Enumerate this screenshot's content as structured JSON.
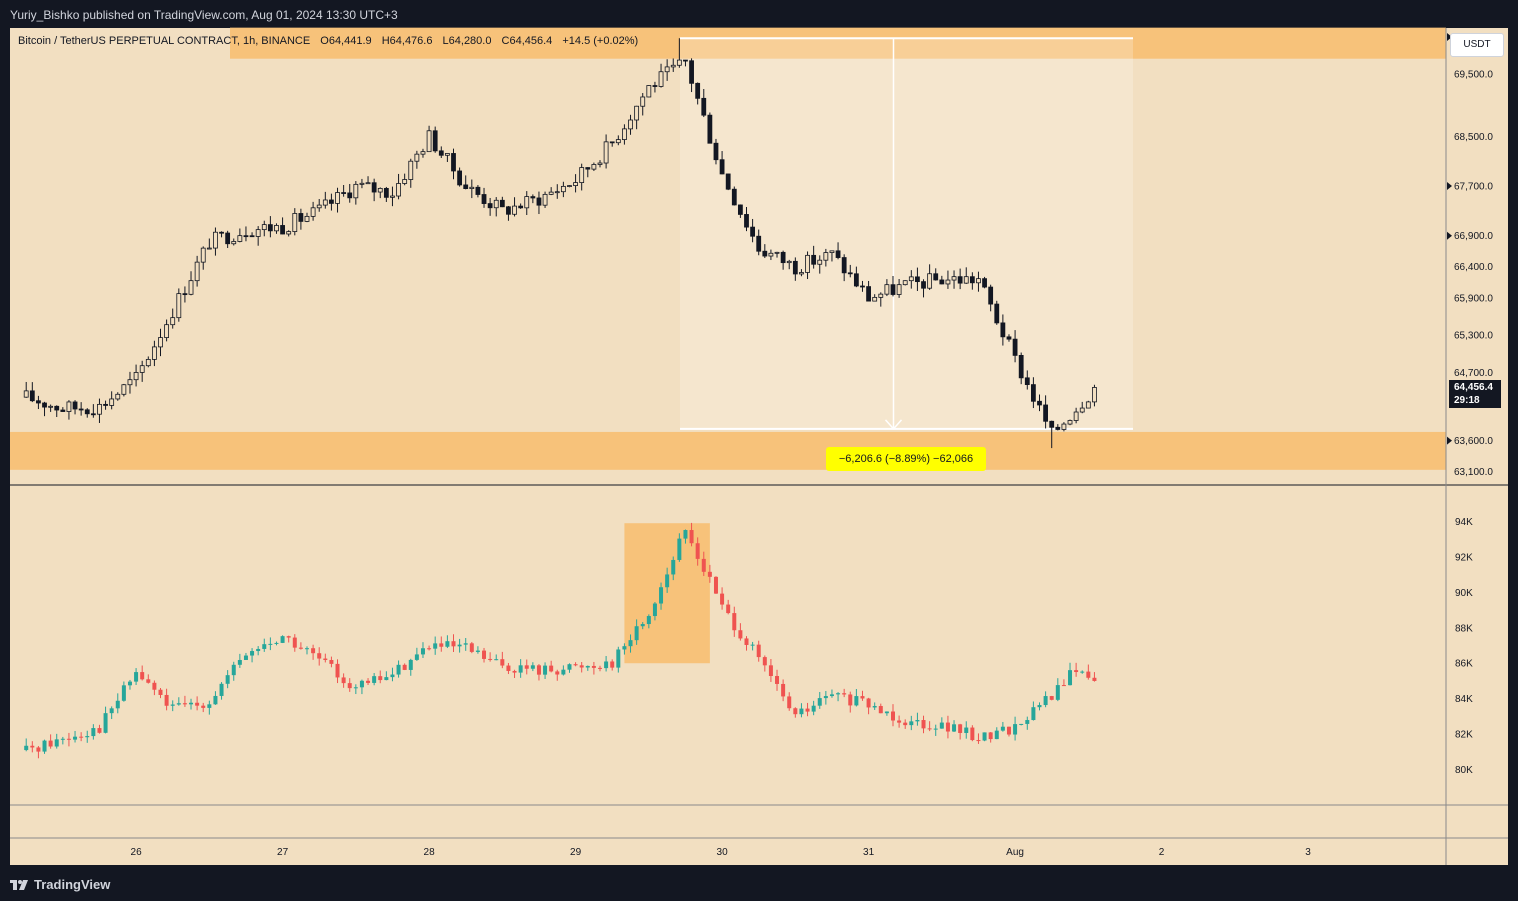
{
  "header": {
    "publisher_line": "Yuriy_Bishko published on TradingView.com, Aug 01, 2024 13:30 UTC+3"
  },
  "legend": {
    "symbol": "Bitcoin / TetherUS PERPETUAL CONTRACT, 1h, BINANCE",
    "open": "O64,441.9",
    "high": "H64,476.6",
    "low": "L64,280.0",
    "close": "C64,456.4",
    "change": "+14.5 (+0.02%)"
  },
  "currency_button": "USDT",
  "last_price": {
    "price": "64,456.4",
    "countdown": "29:18"
  },
  "measure": {
    "label": "−6,206.6 (−8.89%) −62,066"
  },
  "footer": {
    "brand": "TradingView"
  },
  "colors": {
    "background": "#f2dfc1",
    "zone": "#f7c27a",
    "bull": "#26a69a",
    "bear": "#ef5350",
    "candle_body": "#131722",
    "measure_label": "#ffff00"
  },
  "chart_data": [
    {
      "type": "candlestick",
      "title": "Bitcoin / TetherUS PERPETUAL CONTRACT, 1h, BINANCE",
      "x_ticks": [
        "26",
        "27",
        "28",
        "29",
        "30",
        "31",
        "Aug",
        "2",
        "3"
      ],
      "y_ticks": [
        "69,500.0",
        "68,500.0",
        "67,700.0",
        "66,900.0",
        "66,400.0",
        "65,900.0",
        "65,300.0",
        "64,700.0",
        "63,600.0",
        "63,100.0"
      ],
      "ylim": [
        62950,
        70180
      ],
      "grid": false,
      "series": [
        {
          "close_path": [
            [
              "Jul 25 06:00",
              64300
            ],
            [
              "Jul 25 12:00",
              64120
            ],
            [
              "Jul 25 18:00",
              64150
            ],
            [
              "Jul 26 00:00",
              64600
            ],
            [
              "Jul 26 06:00",
              65700
            ],
            [
              "Jul 26 12:00",
              66800
            ],
            [
              "Jul 26 18:00",
              67000
            ],
            [
              "Jul 27 00:00",
              67050
            ],
            [
              "Jul 27 06:00",
              67300
            ],
            [
              "Jul 27 12:00",
              67700
            ],
            [
              "Jul 27 18:00",
              67600
            ],
            [
              "Jul 28 00:00",
              68500
            ],
            [
              "Jul 28 06:00",
              67700
            ],
            [
              "Jul 28 12:00",
              67300
            ],
            [
              "Jul 28 18:00",
              67500
            ],
            [
              "Jul 29 00:00",
              67800
            ],
            [
              "Jul 29 06:00",
              68400
            ],
            [
              "Jul 29 12:00",
              69300
            ],
            [
              "Jul 29 18:00",
              69700
            ],
            [
              "Jul 30 00:00",
              67900
            ],
            [
              "Jul 30 06:00",
              66700
            ],
            [
              "Jul 30 12:00",
              66400
            ],
            [
              "Jul 30 18:00",
              66600
            ],
            [
              "Jul 31 00:00",
              65900
            ],
            [
              "Jul 31 06:00",
              66100
            ],
            [
              "Jul 31 12:00",
              66200
            ],
            [
              "Jul 31 18:00",
              66200
            ],
            [
              "Aug 1 00:00",
              64900
            ],
            [
              "Aug 1 06:00",
              63700
            ],
            [
              "Aug 1 13:00",
              64456.4
            ]
          ],
          "high": 70080,
          "low": 63480
        }
      ],
      "zones": [
        {
          "from": 69750,
          "to": 70250
        },
        {
          "from": 63130,
          "to": 63740
        }
      ],
      "annotations": [
        "−6,206.6 (−8.89%) −62,066",
        "64,456.4",
        "29:18"
      ]
    },
    {
      "type": "candlestick",
      "y_ticks": [
        "94K",
        "92K",
        "90K",
        "88K",
        "86K",
        "84K",
        "82K",
        "80K"
      ],
      "ylim": [
        78000,
        96000
      ],
      "grid": false,
      "series": [
        {
          "close_path": [
            [
              "Jul 25 06:00",
              81100
            ],
            [
              "Jul 25 18:00",
              82400
            ],
            [
              "Jul 26 00:00",
              85500
            ],
            [
              "Jul 26 06:00",
              83400
            ],
            [
              "Jul 26 12:00",
              83900
            ],
            [
              "Jul 26 18:00",
              86500
            ],
            [
              "Jul 27 00:00",
              87500
            ],
            [
              "Jul 27 06:00",
              86200
            ],
            [
              "Jul 27 12:00",
              84600
            ],
            [
              "Jul 27 18:00",
              85400
            ],
            [
              "Jul 28 00:00",
              87000
            ],
            [
              "Jul 28 06:00",
              86800
            ],
            [
              "Jul 28 12:00",
              85800
            ],
            [
              "Jul 28 18:00",
              85600
            ],
            [
              "Jul 29 00:00",
              85800
            ],
            [
              "Jul 29 06:00",
              86100
            ],
            [
              "Jul 29 12:00",
              88800
            ],
            [
              "Jul 29 18:00",
              93500
            ],
            [
              "Jul 30 00:00",
              89200
            ],
            [
              "Jul 30 06:00",
              86200
            ],
            [
              "Jul 30 12:00",
              83000
            ],
            [
              "Jul 30 18:00",
              84200
            ],
            [
              "Jul 31 00:00",
              83600
            ],
            [
              "Jul 31 06:00",
              82800
            ],
            [
              "Jul 31 12:00",
              82500
            ],
            [
              "Jul 31 18:00",
              81800
            ],
            [
              "Aug 1 00:00",
              82400
            ],
            [
              "Aug 1 06:00",
              84200
            ],
            [
              "Aug 1 10:00",
              85700
            ],
            [
              "Aug 1 13:00",
              85000
            ]
          ]
        }
      ],
      "zones": [
        {
          "from": "Jul 29 08:00",
          "to": "Jul 29 22:00",
          "low": 86000,
          "high": 93900
        }
      ]
    }
  ]
}
